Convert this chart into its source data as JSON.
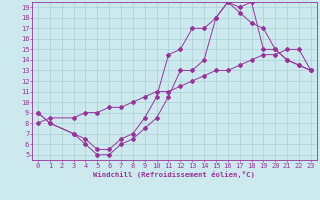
{
  "xlabel": "Windchill (Refroidissement éolien,°C)",
  "xlim": [
    -0.5,
    23.5
  ],
  "ylim": [
    4.5,
    19.5
  ],
  "xticks": [
    0,
    1,
    2,
    3,
    4,
    5,
    6,
    7,
    8,
    9,
    10,
    11,
    12,
    13,
    14,
    15,
    16,
    17,
    18,
    19,
    20,
    21,
    22,
    23
  ],
  "yticks": [
    5,
    6,
    7,
    8,
    9,
    10,
    11,
    12,
    13,
    14,
    15,
    16,
    17,
    18,
    19
  ],
  "bg_color": "#cce9ee",
  "grid_color": "#aad0d8",
  "line_color": "#993399",
  "line1_x": [
    0,
    1,
    3,
    4,
    5,
    6,
    7,
    8,
    9,
    10,
    11,
    12,
    13,
    14,
    15,
    16,
    17,
    18,
    19,
    20,
    21,
    22,
    23
  ],
  "line1_y": [
    9,
    8,
    7,
    6.5,
    5.5,
    5.5,
    6.5,
    7,
    8.5,
    10.5,
    14.5,
    15,
    17,
    17,
    18,
    19.5,
    18.5,
    17.5,
    17,
    15,
    14,
    13.5,
    13
  ],
  "line2_x": [
    0,
    1,
    3,
    4,
    5,
    6,
    7,
    8,
    9,
    10,
    11,
    12,
    13,
    14,
    15,
    16,
    17,
    18,
    19,
    20,
    21,
    22,
    23
  ],
  "line2_y": [
    9,
    8,
    7,
    6,
    5,
    5,
    6,
    6.5,
    7.5,
    8.5,
    10.5,
    13,
    13,
    14,
    18,
    19.5,
    19,
    19.5,
    15,
    15,
    14,
    13.5,
    13
  ],
  "line3_x": [
    0,
    1,
    3,
    4,
    5,
    6,
    7,
    8,
    9,
    10,
    11,
    12,
    13,
    14,
    15,
    16,
    17,
    18,
    19,
    20,
    21,
    22,
    23
  ],
  "line3_y": [
    8,
    8.5,
    8.5,
    9,
    9,
    9.5,
    9.5,
    10,
    10.5,
    11,
    11,
    11.5,
    12,
    12.5,
    13,
    13,
    13.5,
    14,
    14.5,
    14.5,
    15,
    15,
    13
  ]
}
